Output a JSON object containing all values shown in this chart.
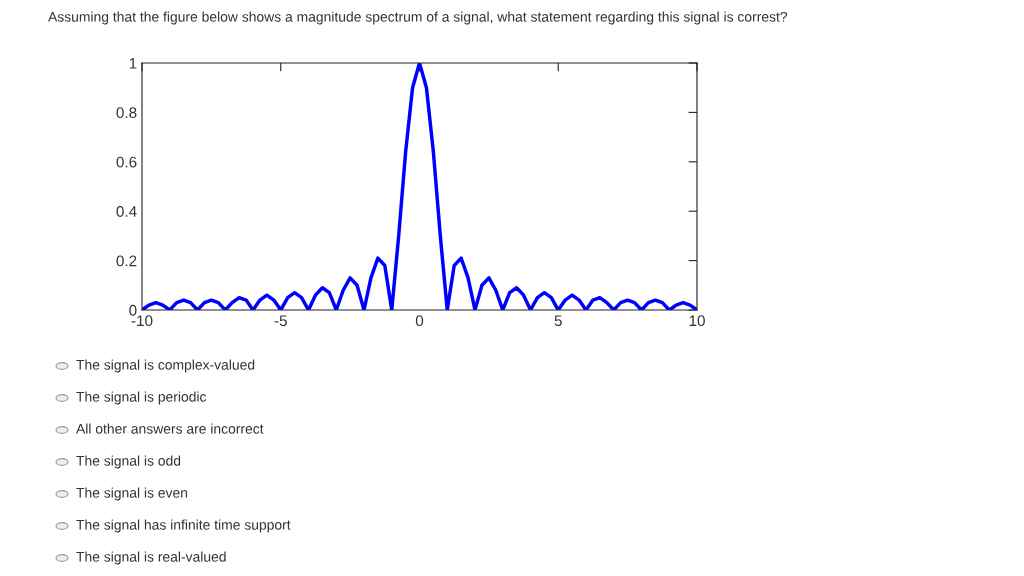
{
  "chart_data": {
    "type": "line",
    "title": "Assuming that the figure below shows a magnitude spectrum of a signal, what statement regarding this signal is correst?",
    "x": [
      -10,
      -9.75,
      -9.5,
      -9.25,
      -9,
      -8.75,
      -8.5,
      -8.25,
      -8,
      -7.75,
      -7.5,
      -7.25,
      -7,
      -6.75,
      -6.5,
      -6.25,
      -6,
      -5.75,
      -5.5,
      -5.25,
      -5,
      -4.75,
      -4.5,
      -4.25,
      -4,
      -3.75,
      -3.5,
      -3.25,
      -3,
      -2.75,
      -2.5,
      -2.25,
      -2,
      -1.75,
      -1.5,
      -1.25,
      -1,
      -0.75,
      -0.5,
      -0.25,
      0,
      0.25,
      0.5,
      0.75,
      1,
      1.25,
      1.5,
      1.75,
      2,
      2.25,
      2.5,
      2.75,
      3,
      3.25,
      3.5,
      3.75,
      4,
      4.25,
      4.5,
      4.75,
      5,
      5.25,
      5.5,
      5.75,
      6,
      6.25,
      6.5,
      6.75,
      7,
      7.25,
      7.5,
      7.75,
      8,
      8.25,
      8.5,
      8.75,
      9,
      9.25,
      9.5,
      9.75,
      10
    ],
    "series": [
      {
        "color": "#0000ff",
        "values": [
          0,
          0.02,
          0.03,
          0.02,
          0,
          0.03,
          0.04,
          0.03,
          0,
          0.03,
          0.04,
          0.03,
          0,
          0.03,
          0.05,
          0.04,
          0,
          0.04,
          0.06,
          0.04,
          0,
          0.05,
          0.07,
          0.05,
          0,
          0.06,
          0.09,
          0.07,
          0,
          0.08,
          0.13,
          0.1,
          0,
          0.13,
          0.21,
          0.18,
          0,
          0.3,
          0.64,
          0.9,
          1,
          0.9,
          0.64,
          0.3,
          0,
          0.18,
          0.21,
          0.13,
          0,
          0.1,
          0.13,
          0.08,
          0,
          0.07,
          0.09,
          0.06,
          0,
          0.05,
          0.07,
          0.05,
          0,
          0.04,
          0.06,
          0.04,
          0,
          0.04,
          0.05,
          0.03,
          0,
          0.03,
          0.04,
          0.03,
          0,
          0.03,
          0.04,
          0.03,
          0,
          0.02,
          0.03,
          0.02,
          0
        ]
      }
    ],
    "xlim": [
      -10,
      10
    ],
    "xticks": [
      -10,
      -5,
      0,
      5,
      10
    ],
    "ylim": [
      0,
      1
    ],
    "yticks": [
      0,
      0.2,
      0.4,
      0.6,
      0.8,
      1
    ],
    "grid": false,
    "line_style": "solid",
    "annotations": [
      "The signal is complex-valued",
      "The signal is periodic",
      "All other answers are incorrect",
      "The signal is odd",
      "The signal is even",
      "The signal has infinite time support",
      "The signal is real-valued"
    ]
  }
}
